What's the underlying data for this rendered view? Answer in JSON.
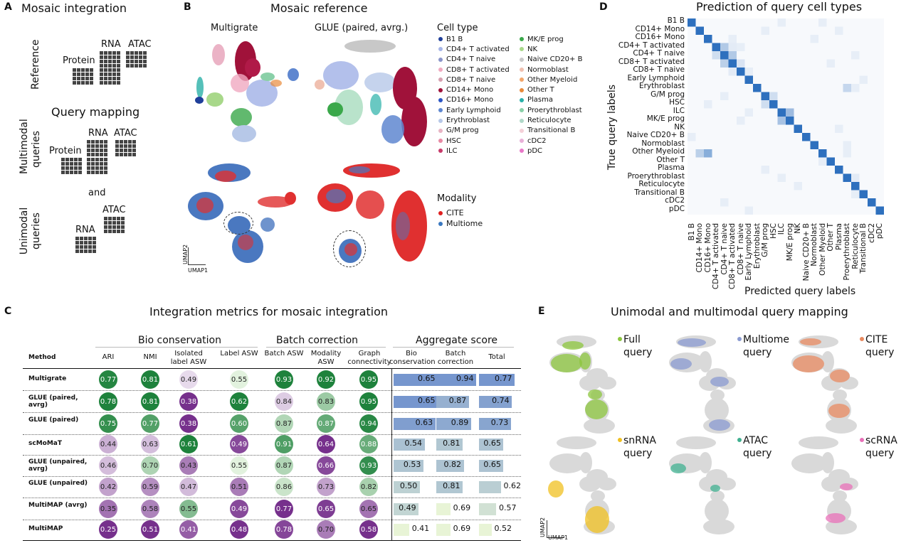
{
  "panelA": {
    "label": "A",
    "title": "Mosaic integration",
    "reference_label": "Reference",
    "rna": "RNA",
    "atac": "ATAC",
    "protein": "Protein",
    "query_title": "Query mapping",
    "multimodal_label": "Multimodal queries",
    "and": "and",
    "unimodal_label": "Unimodal queries"
  },
  "panelB": {
    "label": "B",
    "title": "Mosaic reference",
    "col1": "Multigrate",
    "col2": "GLUE (paired, avrg.)",
    "umap1": "UMAP1",
    "umap2": "UMAP2",
    "legend_title": "Cell type",
    "cell_types_col1": [
      {
        "name": "B1 B",
        "color": "#1f3f9a"
      },
      {
        "name": "CD4+ T activated",
        "color": "#a6b5e8"
      },
      {
        "name": "CD4+ T naive",
        "color": "#8a94c9"
      },
      {
        "name": "CD8+ T activated",
        "color": "#f0a9c0"
      },
      {
        "name": "CD8+ T naive",
        "color": "#d6a0b0"
      },
      {
        "name": "CD14+ Mono",
        "color": "#a0123a"
      },
      {
        "name": "CD16+ Mono",
        "color": "#2b55c4"
      },
      {
        "name": "Early Lymphoid",
        "color": "#5f87d0"
      },
      {
        "name": "Erythroblast",
        "color": "#b7c8e8"
      },
      {
        "name": "G/M prog",
        "color": "#e8b4c4"
      },
      {
        "name": "HSC",
        "color": "#e88aa5"
      },
      {
        "name": "ILC",
        "color": "#c73a6a"
      }
    ],
    "cell_types_col2": [
      {
        "name": "MK/E prog",
        "color": "#3aa84a"
      },
      {
        "name": "NK",
        "color": "#a8d88a"
      },
      {
        "name": "Naive CD20+ B",
        "color": "#c8c8c8"
      },
      {
        "name": "Normoblast",
        "color": "#f0c0b0"
      },
      {
        "name": "Other Myeloid",
        "color": "#f2a66a"
      },
      {
        "name": "Other T",
        "color": "#e88a3a"
      },
      {
        "name": "Plasma",
        "color": "#2ab0a8"
      },
      {
        "name": "Proerythroblast",
        "color": "#8ad0a8"
      },
      {
        "name": "Reticulocyte",
        "color": "#b0d8c8"
      },
      {
        "name": "Transitional B",
        "color": "#f4d0d8"
      },
      {
        "name": "cDC2",
        "color": "#e8b0d8"
      },
      {
        "name": "pDC",
        "color": "#e878c8"
      }
    ],
    "modality_title": "Modality",
    "modalities": [
      {
        "name": "CITE",
        "color": "#e02020"
      },
      {
        "name": "Multiome",
        "color": "#3a78c0"
      }
    ]
  },
  "panelC": {
    "label": "C",
    "title": "Integration metrics for mosaic integration",
    "groups": [
      "Bio conservation",
      "Batch correction",
      "Aggregate score"
    ],
    "method_header": "Method",
    "columns": [
      "ARI",
      "NMI",
      "Isolated label ASW",
      "Label ASW",
      "Batch ASW",
      "Modality ASW",
      "Graph connectivity",
      "Bio conservation",
      "Batch correction",
      "Total"
    ],
    "methods": [
      "Multigrate",
      "GLUE (paired, avrg)",
      "GLUE (paired)",
      "scMoMaT",
      "GLUE (unpaired, avrg)",
      "GLUE (unpaired)",
      "MultiMAP (avrg)",
      "MultiMAP"
    ],
    "values": [
      [
        0.77,
        0.81,
        0.49,
        0.55,
        0.93,
        0.92,
        0.95,
        0.65,
        0.94,
        0.77
      ],
      [
        0.78,
        0.81,
        0.38,
        0.62,
        0.84,
        0.83,
        0.95,
        0.65,
        0.87,
        0.74
      ],
      [
        0.75,
        0.77,
        0.38,
        0.6,
        0.87,
        0.87,
        0.94,
        0.63,
        0.89,
        0.73
      ],
      [
        0.44,
        0.63,
        0.61,
        0.49,
        0.91,
        0.64,
        0.88,
        0.54,
        0.81,
        0.65
      ],
      [
        0.46,
        0.7,
        0.43,
        0.55,
        0.87,
        0.66,
        0.93,
        0.53,
        0.82,
        0.65
      ],
      [
        0.42,
        0.59,
        0.47,
        0.51,
        0.86,
        0.73,
        0.82,
        0.5,
        0.81,
        0.62
      ],
      [
        0.35,
        0.58,
        0.55,
        0.49,
        0.77,
        0.65,
        0.65,
        0.49,
        0.69,
        0.57
      ],
      [
        0.25,
        0.51,
        0.41,
        0.48,
        0.78,
        0.7,
        0.58,
        0.41,
        0.69,
        0.52
      ]
    ]
  },
  "panelD": {
    "label": "D",
    "title": "Prediction of query cell types",
    "ylabel": "True query labels",
    "xlabel": "Predicted query labels",
    "labels": [
      "B1 B",
      "CD14+ Mono",
      "CD16+ Mono",
      "CD4+ T activated",
      "CD4+ T naive",
      "CD8+ T activated",
      "CD8+ T naive",
      "Early Lymphoid",
      "Erythroblast",
      "G/M prog",
      "HSC",
      "ILC",
      "MK/E prog",
      "NK",
      "Naive CD20+ B",
      "Normoblast",
      "Other Myeloid",
      "Other T",
      "Plasma",
      "Proerythroblast",
      "Reticulocyte",
      "Transitional B",
      "cDC2",
      "pDC"
    ]
  },
  "panelE": {
    "label": "E",
    "title": "Unimodal and multimodal query mapping",
    "umap1": "UMAP1",
    "umap2": "UMAP2",
    "queries": [
      {
        "line1": "Full",
        "line2": "query",
        "color": "#8cc63e"
      },
      {
        "line1": "Multiome",
        "line2": "query",
        "color": "#8a9ad0"
      },
      {
        "line1": "CITE",
        "line2": "query",
        "color": "#e88a60"
      },
      {
        "line1": "snRNA",
        "line2": "query",
        "color": "#f0c020"
      },
      {
        "line1": "ATAC",
        "line2": "query",
        "color": "#40b090"
      },
      {
        "line1": "scRNA",
        "line2": "query",
        "color": "#e870b8"
      }
    ]
  },
  "chart_data": [
    {
      "type": "heatmap",
      "title": "Prediction of query cell types",
      "xlabel": "Predicted query labels",
      "ylabel": "True query labels",
      "categories": [
        "B1 B",
        "CD14+ Mono",
        "CD16+ Mono",
        "CD4+ T activated",
        "CD4+ T naive",
        "CD8+ T activated",
        "CD8+ T naive",
        "Early Lymphoid",
        "Erythroblast",
        "G/M prog",
        "HSC",
        "ILC",
        "MK/E prog",
        "NK",
        "Naive CD20+ B",
        "Normoblast",
        "Other Myeloid",
        "Other T",
        "Plasma",
        "Proerythroblast",
        "Reticulocyte",
        "Transitional B",
        "cDC2",
        "pDC"
      ],
      "strong_offdiagonal": [
        [
          3,
          4,
          0.35
        ],
        [
          4,
          3,
          0.2
        ],
        [
          4,
          5,
          0.35
        ],
        [
          5,
          4,
          0.3
        ],
        [
          5,
          6,
          0.15
        ],
        [
          11,
          12,
          0.45
        ],
        [
          12,
          11,
          0.4
        ],
        [
          16,
          1,
          0.3
        ],
        [
          16,
          2,
          0.55
        ],
        [
          8,
          19,
          0.25
        ],
        [
          9,
          10,
          0.2
        ],
        [
          10,
          9,
          0.2
        ],
        [
          19,
          20,
          0.1
        ],
        [
          3,
          5,
          0.1
        ],
        [
          6,
          5,
          0.1
        ]
      ]
    },
    {
      "type": "table",
      "title": "Integration metrics for mosaic integration"
    }
  ]
}
